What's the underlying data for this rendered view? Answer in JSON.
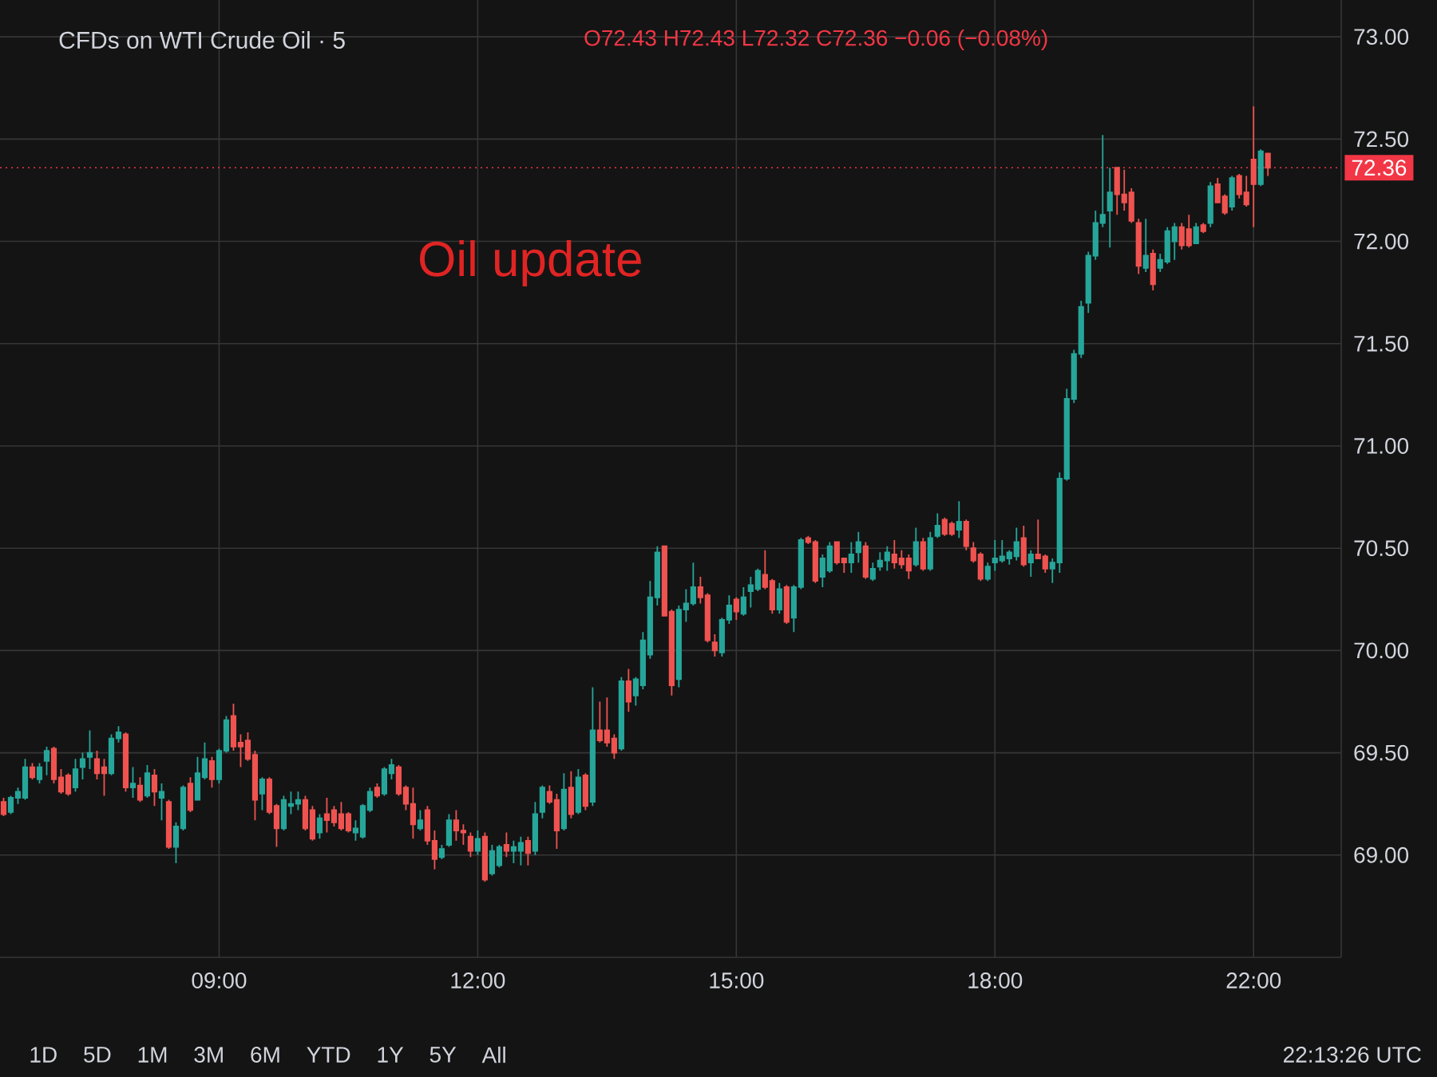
{
  "chart_data": {
    "type": "candlestick",
    "title": "CFDs on WTI Crude Oil · 5",
    "subtitle": "O72.43 H72.43 L72.32 C72.36 −0.06 (−0.08%)",
    "annotations": [
      "Oil update",
      "1D",
      "5D",
      "1M",
      "3M",
      "6M",
      "YTD",
      "1Y",
      "5Y",
      "All",
      "22:13:26 UTC"
    ],
    "categories": [
      null,
      null,
      null,
      null,
      null,
      null,
      null,
      null,
      null,
      null,
      null,
      null,
      null,
      null,
      null,
      null,
      null,
      null,
      null,
      null,
      null,
      null,
      null,
      null,
      null,
      null,
      null,
      null,
      null,
      null,
      "09:00",
      null,
      null,
      null,
      null,
      null,
      null,
      null,
      null,
      null,
      null,
      null,
      null,
      null,
      null,
      null,
      null,
      null,
      null,
      null,
      null,
      null,
      null,
      null,
      null,
      null,
      null,
      null,
      null,
      null,
      null,
      null,
      null,
      null,
      null,
      null,
      "12:00",
      null,
      null,
      null,
      null,
      null,
      null,
      null,
      null,
      null,
      null,
      null,
      null,
      null,
      null,
      null,
      null,
      null,
      null,
      null,
      null,
      null,
      null,
      null,
      null,
      null,
      null,
      null,
      null,
      null,
      null,
      null,
      null,
      null,
      null,
      null,
      "15:00",
      null,
      null,
      null,
      null,
      null,
      null,
      null,
      null,
      null,
      null,
      null,
      null,
      null,
      null,
      null,
      null,
      null,
      null,
      null,
      null,
      null,
      null,
      null,
      null,
      null,
      null,
      null,
      null,
      null,
      null,
      null,
      null,
      null,
      null,
      null,
      "18:00",
      null,
      null,
      null,
      null,
      null,
      null,
      null,
      null,
      null,
      null,
      null,
      null,
      null,
      null,
      null,
      null,
      null,
      null,
      null,
      null,
      null,
      null,
      null,
      null,
      null,
      null,
      null,
      null,
      null,
      null,
      null,
      null,
      null,
      null,
      null,
      "22:00",
      null,
      null
    ],
    "ohlc": [
      [
        69.26,
        69.28,
        69.19,
        69.2
      ],
      [
        69.21,
        69.29,
        69.2,
        69.28
      ],
      [
        69.28,
        69.33,
        69.25,
        69.31
      ],
      [
        69.28,
        69.47,
        69.27,
        69.43
      ],
      [
        69.43,
        69.45,
        69.37,
        69.38
      ],
      [
        69.37,
        69.45,
        69.35,
        69.43
      ],
      [
        69.46,
        69.53,
        69.39,
        69.51
      ],
      [
        69.52,
        69.53,
        69.35,
        69.37
      ],
      [
        69.38,
        69.42,
        69.3,
        69.31
      ],
      [
        69.39,
        69.4,
        69.29,
        69.3
      ],
      [
        69.33,
        69.47,
        69.31,
        69.42
      ],
      [
        69.43,
        69.5,
        69.37,
        69.47
      ],
      [
        69.48,
        69.61,
        69.42,
        69.5
      ],
      [
        69.47,
        69.51,
        69.37,
        69.4
      ],
      [
        69.43,
        69.47,
        69.29,
        69.4
      ],
      [
        69.4,
        69.59,
        69.39,
        69.57
      ],
      [
        69.57,
        69.63,
        69.55,
        69.6
      ],
      [
        69.59,
        69.6,
        69.31,
        69.33
      ],
      [
        69.33,
        69.43,
        69.28,
        69.35
      ],
      [
        69.34,
        69.38,
        69.26,
        69.27
      ],
      [
        69.29,
        69.44,
        69.28,
        69.4
      ],
      [
        69.39,
        69.42,
        69.24,
        69.31
      ],
      [
        69.28,
        69.35,
        69.17,
        69.31
      ],
      [
        69.26,
        69.27,
        69.03,
        69.04
      ],
      [
        69.04,
        69.16,
        68.96,
        69.14
      ],
      [
        69.13,
        69.34,
        69.12,
        69.33
      ],
      [
        69.35,
        69.38,
        69.21,
        69.22
      ],
      [
        69.27,
        69.48,
        69.27,
        69.4
      ],
      [
        69.38,
        69.55,
        69.37,
        69.47
      ],
      [
        69.46,
        69.48,
        69.33,
        69.37
      ],
      [
        69.37,
        69.52,
        69.35,
        69.51
      ],
      [
        69.51,
        69.68,
        69.5,
        69.66
      ],
      [
        69.68,
        69.74,
        69.51,
        69.53
      ],
      [
        69.55,
        69.59,
        69.43,
        69.53
      ],
      [
        69.56,
        69.6,
        69.46,
        69.47
      ],
      [
        69.49,
        69.51,
        69.17,
        69.27
      ],
      [
        69.3,
        69.38,
        69.22,
        69.37
      ],
      [
        69.37,
        69.38,
        69.2,
        69.21
      ],
      [
        69.24,
        69.25,
        69.04,
        69.13
      ],
      [
        69.13,
        69.29,
        69.12,
        69.27
      ],
      [
        69.24,
        69.31,
        69.2,
        69.25
      ],
      [
        69.25,
        69.31,
        69.22,
        69.27
      ],
      [
        69.27,
        69.29,
        69.12,
        69.13
      ],
      [
        69.22,
        69.24,
        69.07,
        69.08
      ],
      [
        69.11,
        69.2,
        69.08,
        69.18
      ],
      [
        69.2,
        69.28,
        69.11,
        69.17
      ],
      [
        69.22,
        69.24,
        69.14,
        69.16
      ],
      [
        69.2,
        69.26,
        69.12,
        69.13
      ],
      [
        69.2,
        69.21,
        69.11,
        69.12
      ],
      [
        69.11,
        69.17,
        69.07,
        69.13
      ],
      [
        69.09,
        69.25,
        69.08,
        69.24
      ],
      [
        69.22,
        69.33,
        69.21,
        69.31
      ],
      [
        69.33,
        69.35,
        69.28,
        69.29
      ],
      [
        69.3,
        69.43,
        69.29,
        69.42
      ],
      [
        69.4,
        69.47,
        69.37,
        69.44
      ],
      [
        69.43,
        69.44,
        69.29,
        69.3
      ],
      [
        69.33,
        69.34,
        69.22,
        69.25
      ],
      [
        69.25,
        69.33,
        69.08,
        69.15
      ],
      [
        69.13,
        69.22,
        69.12,
        69.17
      ],
      [
        69.22,
        69.24,
        69.05,
        69.07
      ],
      [
        69.07,
        69.12,
        68.93,
        68.98
      ],
      [
        68.99,
        69.05,
        68.98,
        69.03
      ],
      [
        69.05,
        69.2,
        69.04,
        69.17
      ],
      [
        69.17,
        69.22,
        69.07,
        69.12
      ],
      [
        69.12,
        69.15,
        69.05,
        69.11
      ],
      [
        69.09,
        69.11,
        68.99,
        69.02
      ],
      [
        69.02,
        69.12,
        69.0,
        69.08
      ],
      [
        69.09,
        69.11,
        68.87,
        68.88
      ],
      [
        68.91,
        69.05,
        68.9,
        69.02
      ],
      [
        68.95,
        69.05,
        68.94,
        69.04
      ],
      [
        69.05,
        69.11,
        68.99,
        69.02
      ],
      [
        69.02,
        69.07,
        68.96,
        69.04
      ],
      [
        69.02,
        69.09,
        68.95,
        69.06
      ],
      [
        69.07,
        69.09,
        68.95,
        69.01
      ],
      [
        69.02,
        69.26,
        69.0,
        69.2
      ],
      [
        69.21,
        69.34,
        69.18,
        69.33
      ],
      [
        69.31,
        69.34,
        69.25,
        69.26
      ],
      [
        69.27,
        69.3,
        69.03,
        69.12
      ],
      [
        69.13,
        69.4,
        69.12,
        69.32
      ],
      [
        69.33,
        69.41,
        69.18,
        69.2
      ],
      [
        69.21,
        69.42,
        69.2,
        69.38
      ],
      [
        69.39,
        69.4,
        69.22,
        69.24
      ],
      [
        69.26,
        69.82,
        69.24,
        69.61
      ],
      [
        69.61,
        69.75,
        69.55,
        69.56
      ],
      [
        69.61,
        69.77,
        69.53,
        69.55
      ],
      [
        69.57,
        69.59,
        69.47,
        69.5
      ],
      [
        69.52,
        69.87,
        69.51,
        69.85
      ],
      [
        69.85,
        69.91,
        69.7,
        69.75
      ],
      [
        69.78,
        69.87,
        69.73,
        69.86
      ],
      [
        69.83,
        70.09,
        69.81,
        70.05
      ],
      [
        69.98,
        70.34,
        69.96,
        70.26
      ],
      [
        70.26,
        70.51,
        70.22,
        70.48
      ],
      [
        70.51,
        70.51,
        70.17,
        70.17
      ],
      [
        70.19,
        70.2,
        69.78,
        69.83
      ],
      [
        69.86,
        70.22,
        69.82,
        70.2
      ],
      [
        70.2,
        70.3,
        70.14,
        70.23
      ],
      [
        70.23,
        70.43,
        70.22,
        70.31
      ],
      [
        70.31,
        70.36,
        70.23,
        70.26
      ],
      [
        70.27,
        70.28,
        70.04,
        70.05
      ],
      [
        70.04,
        70.08,
        69.97,
        70.0
      ],
      [
        69.99,
        70.16,
        69.97,
        70.15
      ],
      [
        70.15,
        70.27,
        70.13,
        70.22
      ],
      [
        70.25,
        70.26,
        70.15,
        70.19
      ],
      [
        70.18,
        70.31,
        70.17,
        70.26
      ],
      [
        70.29,
        70.36,
        70.21,
        70.32
      ],
      [
        70.3,
        70.4,
        70.29,
        70.39
      ],
      [
        70.37,
        70.49,
        70.3,
        70.31
      ],
      [
        70.34,
        70.35,
        70.18,
        70.2
      ],
      [
        70.2,
        70.33,
        70.18,
        70.3
      ],
      [
        70.31,
        70.32,
        70.13,
        70.14
      ],
      [
        70.16,
        70.32,
        70.09,
        70.31
      ],
      [
        70.31,
        70.55,
        70.3,
        70.54
      ],
      [
        70.55,
        70.56,
        70.52,
        70.53
      ],
      [
        70.53,
        70.54,
        70.33,
        70.34
      ],
      [
        70.36,
        70.47,
        70.31,
        70.45
      ],
      [
        70.39,
        70.53,
        70.38,
        70.51
      ],
      [
        70.53,
        70.53,
        70.42,
        70.43
      ],
      [
        70.45,
        70.45,
        70.38,
        70.43
      ],
      [
        70.43,
        70.53,
        70.38,
        70.47
      ],
      [
        70.48,
        70.58,
        70.43,
        70.53
      ],
      [
        70.51,
        70.53,
        70.35,
        70.36
      ],
      [
        70.35,
        70.43,
        70.34,
        70.4
      ],
      [
        70.41,
        70.48,
        70.39,
        70.44
      ],
      [
        70.44,
        70.51,
        70.39,
        70.48
      ],
      [
        70.47,
        70.54,
        70.4,
        70.43
      ],
      [
        70.45,
        70.49,
        70.4,
        70.42
      ],
      [
        70.45,
        70.47,
        70.35,
        70.39
      ],
      [
        70.42,
        70.6,
        70.41,
        70.53
      ],
      [
        70.53,
        70.55,
        70.39,
        70.4
      ],
      [
        70.4,
        70.58,
        70.39,
        70.55
      ],
      [
        70.56,
        70.67,
        70.55,
        70.61
      ],
      [
        70.64,
        70.65,
        70.56,
        70.57
      ],
      [
        70.62,
        70.63,
        70.56,
        70.57
      ],
      [
        70.59,
        70.73,
        70.55,
        70.63
      ],
      [
        70.63,
        70.64,
        70.49,
        70.51
      ],
      [
        70.5,
        70.53,
        70.43,
        70.44
      ],
      [
        70.47,
        70.48,
        70.34,
        70.35
      ],
      [
        70.35,
        70.43,
        70.34,
        70.41
      ],
      [
        70.43,
        70.54,
        70.39,
        70.45
      ],
      [
        70.44,
        70.54,
        70.43,
        70.46
      ],
      [
        70.45,
        70.49,
        70.42,
        70.48
      ],
      [
        70.46,
        70.6,
        70.44,
        70.53
      ],
      [
        70.55,
        70.61,
        70.41,
        70.42
      ],
      [
        70.43,
        70.49,
        70.36,
        70.47
      ],
      [
        70.47,
        70.64,
        70.45,
        70.45
      ],
      [
        70.46,
        70.47,
        70.38,
        70.4
      ],
      [
        70.4,
        70.45,
        70.33,
        70.43
      ],
      [
        70.43,
        70.87,
        70.38,
        70.84
      ],
      [
        70.84,
        71.28,
        70.83,
        71.23
      ],
      [
        71.23,
        71.47,
        71.21,
        71.45
      ],
      [
        71.45,
        71.71,
        71.43,
        71.68
      ],
      [
        71.7,
        71.95,
        71.65,
        71.93
      ],
      [
        71.93,
        72.15,
        71.91,
        72.09
      ],
      [
        72.09,
        72.52,
        72.07,
        72.13
      ],
      [
        72.15,
        72.36,
        71.97,
        72.24
      ],
      [
        72.36,
        72.36,
        72.13,
        72.23
      ],
      [
        72.23,
        72.35,
        72.15,
        72.19
      ],
      [
        72.24,
        72.26,
        72.09,
        72.1
      ],
      [
        72.09,
        72.11,
        71.84,
        71.88
      ],
      [
        71.87,
        72.11,
        71.85,
        71.93
      ],
      [
        71.94,
        71.96,
        71.76,
        71.79
      ],
      [
        71.87,
        71.94,
        71.85,
        71.91
      ],
      [
        71.9,
        72.07,
        71.89,
        72.05
      ],
      [
        72.0,
        72.09,
        71.91,
        72.07
      ],
      [
        72.07,
        72.09,
        71.96,
        71.98
      ],
      [
        72.06,
        72.13,
        71.97,
        71.98
      ],
      [
        71.99,
        72.09,
        71.99,
        72.07
      ],
      [
        72.08,
        72.09,
        72.04,
        72.05
      ],
      [
        72.09,
        72.29,
        72.07,
        72.27
      ],
      [
        72.28,
        72.31,
        72.19,
        72.19
      ],
      [
        72.22,
        72.23,
        72.13,
        72.14
      ],
      [
        72.17,
        72.32,
        72.15,
        72.31
      ],
      [
        72.32,
        72.33,
        72.21,
        72.23
      ],
      [
        72.24,
        72.32,
        72.17,
        72.18
      ],
      [
        72.4,
        72.66,
        72.07,
        72.28
      ],
      [
        72.28,
        72.45,
        72.27,
        72.44
      ],
      [
        72.43,
        72.43,
        72.32,
        72.36
      ]
    ],
    "colors": [
      "#ef5350",
      "#26a69a",
      "#26a69a",
      "#26a69a",
      "#ef5350",
      "#26a69a",
      "#26a69a",
      "#ef5350",
      "#ef5350",
      "#ef5350",
      "#26a69a",
      "#26a69a",
      "#26a69a",
      "#ef5350",
      "#ef5350",
      "#26a69a",
      "#26a69a",
      "#ef5350",
      "#26a69a",
      "#ef5350",
      "#26a69a",
      "#ef5350",
      "#26a69a",
      "#ef5350",
      "#26a69a",
      "#26a69a",
      "#ef5350",
      "#26a69a",
      "#26a69a",
      "#ef5350",
      "#26a69a",
      "#26a69a",
      "#ef5350",
      "#ef5350",
      "#ef5350",
      "#ef5350",
      "#26a69a",
      "#ef5350",
      "#ef5350",
      "#26a69a",
      "#26a69a",
      "#26a69a",
      "#ef5350",
      "#ef5350",
      "#26a69a",
      "#ef5350",
      "#ef5350",
      "#ef5350",
      "#ef5350",
      "#26a69a",
      "#26a69a",
      "#26a69a",
      "#ef5350",
      "#26a69a",
      "#26a69a",
      "#ef5350",
      "#ef5350",
      "#ef5350",
      "#26a69a",
      "#ef5350",
      "#ef5350",
      "#26a69a",
      "#26a69a",
      "#ef5350",
      "#ef5350",
      "#ef5350",
      "#26a69a",
      "#ef5350",
      "#26a69a",
      "#26a69a",
      "#ef5350",
      "#26a69a",
      "#26a69a",
      "#ef5350",
      "#26a69a",
      "#26a69a",
      "#ef5350",
      "#ef5350",
      "#26a69a",
      "#ef5350",
      "#26a69a",
      "#ef5350",
      "#26a69a",
      "#ef5350",
      "#ef5350",
      "#ef5350",
      "#26a69a",
      "#ef5350",
      "#26a69a",
      "#26a69a",
      "#26a69a",
      "#26a69a",
      "#ef5350",
      "#ef5350",
      "#26a69a",
      "#26a69a",
      "#26a69a",
      "#ef5350",
      "#ef5350",
      "#ef5350",
      "#26a69a",
      "#26a69a",
      "#ef5350",
      "#26a69a",
      "#26a69a",
      "#26a69a",
      "#ef5350",
      "#ef5350",
      "#26a69a",
      "#ef5350",
      "#26a69a",
      "#26a69a",
      "#ef5350",
      "#ef5350",
      "#26a69a",
      "#26a69a",
      "#ef5350",
      "#ef5350",
      "#26a69a",
      "#26a69a",
      "#ef5350",
      "#26a69a",
      "#26a69a",
      "#26a69a",
      "#ef5350",
      "#ef5350",
      "#ef5350",
      "#26a69a",
      "#ef5350",
      "#26a69a",
      "#26a69a",
      "#ef5350",
      "#ef5350",
      "#26a69a",
      "#ef5350",
      "#ef5350",
      "#ef5350",
      "#26a69a",
      "#26a69a",
      "#26a69a",
      "#26a69a",
      "#26a69a",
      "#ef5350",
      "#26a69a",
      "#ef5350",
      "#ef5350",
      "#26a69a",
      "#26a69a",
      "#26a69a",
      "#26a69a",
      "#26a69a",
      "#26a69a",
      "#26a69a",
      "#26a69a",
      "#26a69a",
      "#ef5350",
      "#ef5350",
      "#ef5350",
      "#ef5350",
      "#26a69a",
      "#ef5350",
      "#26a69a",
      "#26a69a",
      "#26a69a",
      "#ef5350",
      "#ef5350",
      "#26a69a",
      "#ef5350",
      "#26a69a",
      "#ef5350",
      "#ef5350",
      "#26a69a",
      "#ef5350",
      "#ef5350",
      "#ef5350",
      "#26a69a",
      "#ef5350"
    ],
    "ylim": [
      68.5,
      73.18
    ],
    "yticks": [
      {
        "value": 69,
        "label": "69.00"
      },
      {
        "value": 69.5,
        "label": "69.50"
      },
      {
        "value": 70,
        "label": "70.00"
      },
      {
        "value": 70.5,
        "label": "70.50"
      },
      {
        "value": 71,
        "label": "71.00"
      },
      {
        "value": 71.5,
        "label": "71.50"
      },
      {
        "value": 72,
        "label": "72.00"
      },
      {
        "value": 72.5,
        "label": "72.50"
      },
      {
        "value": 73,
        "label": "73.00"
      }
    ],
    "grid": true,
    "ref_lines": [
      {
        "axis": "y",
        "value": 72.36,
        "label": "72.36",
        "color": "#f23645",
        "line_style": "dotted"
      }
    ]
  }
}
